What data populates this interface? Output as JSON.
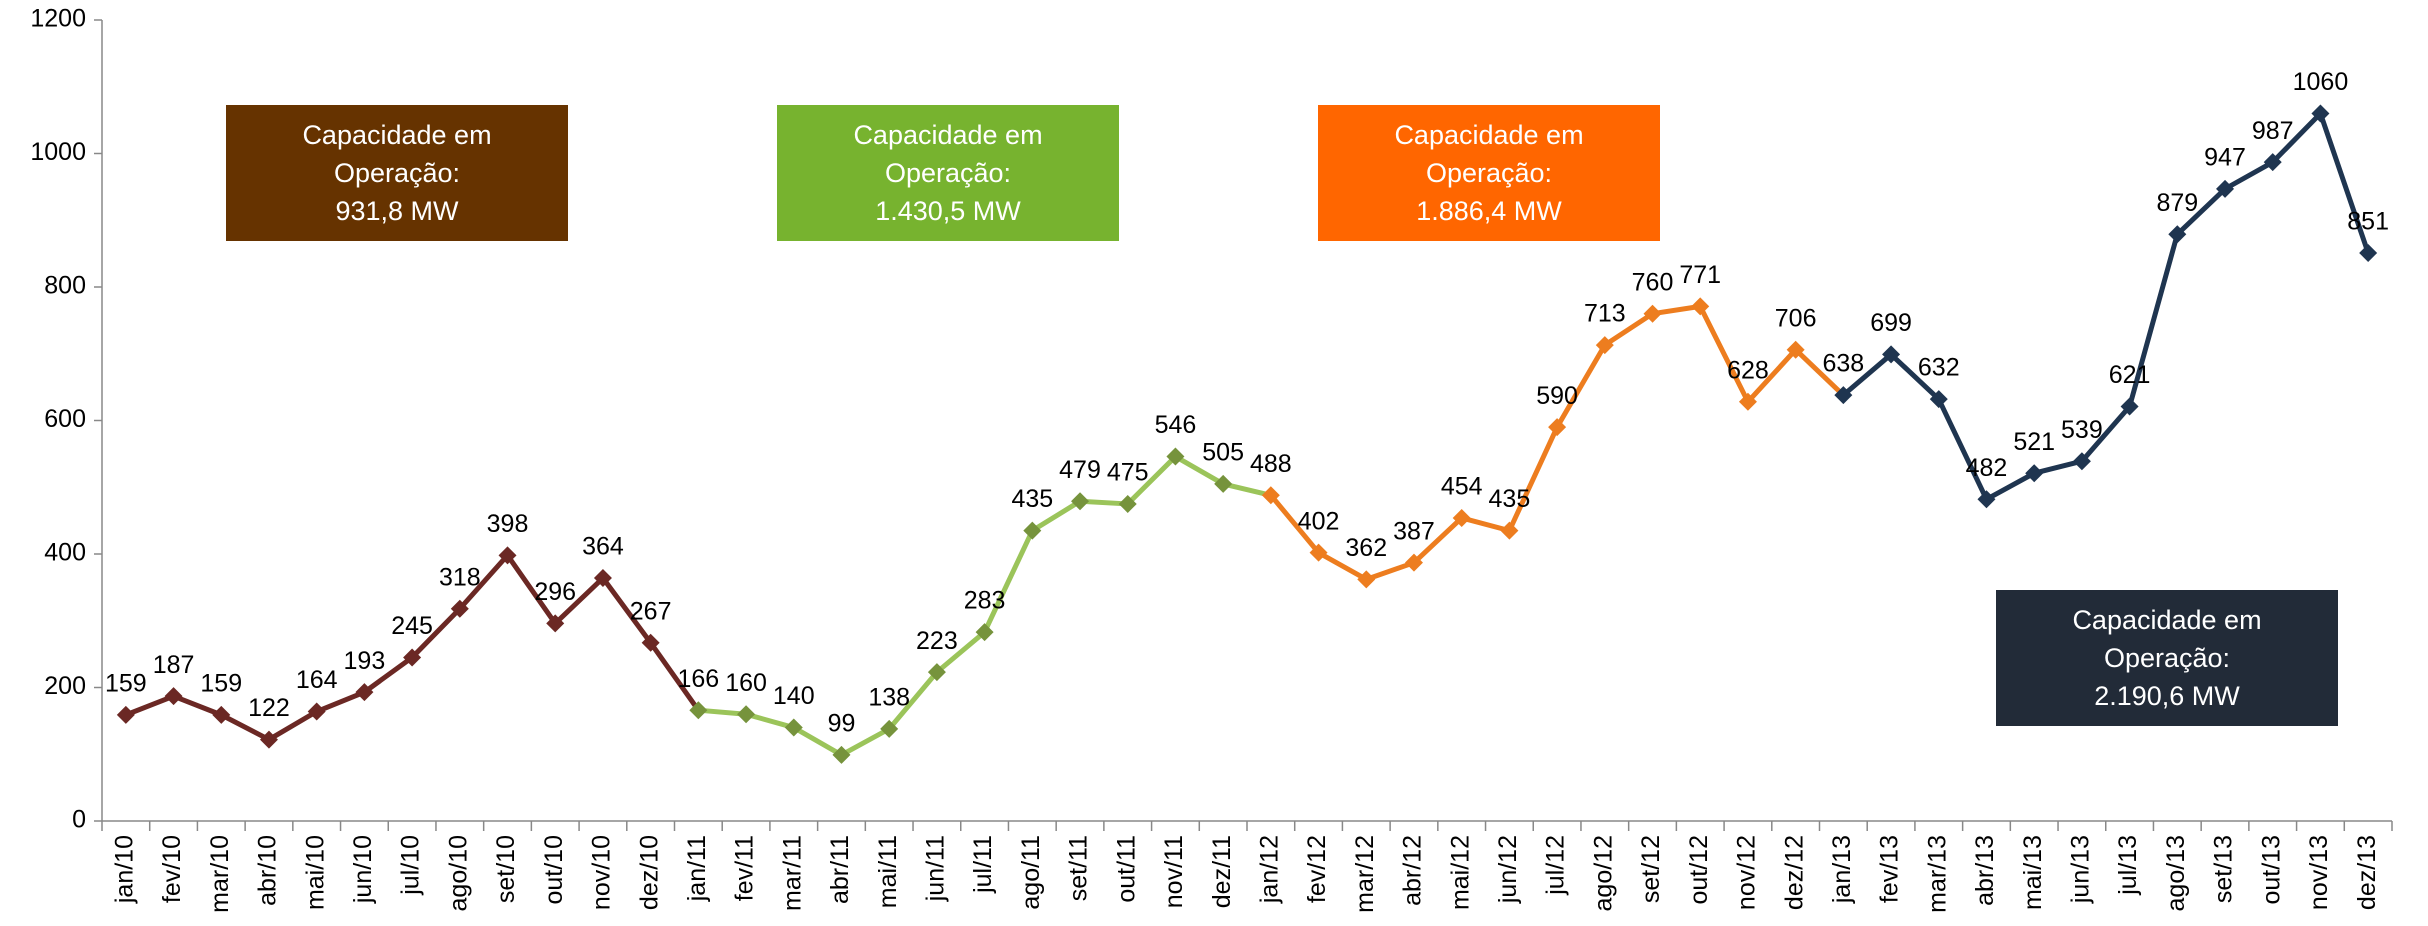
{
  "chart_data": {
    "type": "line",
    "categories": [
      "jan/10",
      "fev/10",
      "mar/10",
      "abr/10",
      "mai/10",
      "jun/10",
      "jul/10",
      "ago/10",
      "set/10",
      "out/10",
      "nov/10",
      "dez/10",
      "jan/11",
      "fev/11",
      "mar/11",
      "abr/11",
      "mai/11",
      "jun/11",
      "jul/11",
      "ago/11",
      "set/11",
      "out/11",
      "nov/11",
      "dez/11",
      "jan/12",
      "fev/12",
      "mar/12",
      "abr/12",
      "mai/12",
      "jun/12",
      "jul/12",
      "ago/12",
      "set/12",
      "out/12",
      "nov/12",
      "dez/12",
      "jan/13",
      "fev/13",
      "mar/13",
      "abr/13",
      "mai/13",
      "jun/13",
      "jul/13",
      "ago/13",
      "set/13",
      "out/13",
      "nov/13",
      "dez/13"
    ],
    "series": [
      {
        "color": "#6b2824",
        "marker_color": "#6b2824",
        "values": [
          159,
          187,
          159,
          122,
          164,
          193,
          245,
          318,
          398,
          296,
          364,
          267,
          null,
          null,
          null,
          null,
          null,
          null,
          null,
          null,
          null,
          null,
          null,
          null,
          null,
          null,
          null,
          null,
          null,
          null,
          null,
          null,
          null,
          null,
          null,
          null,
          null,
          null,
          null,
          null,
          null,
          null,
          null,
          null,
          null,
          null,
          null,
          null
        ]
      },
      {
        "color": "#9bc45a",
        "marker_color": "#76933c",
        "values": [
          null,
          null,
          null,
          null,
          null,
          null,
          null,
          null,
          null,
          null,
          null,
          null,
          166,
          160,
          140,
          99,
          138,
          223,
          283,
          435,
          479,
          475,
          546,
          505,
          null,
          null,
          null,
          null,
          null,
          null,
          null,
          null,
          null,
          null,
          null,
          null,
          null,
          null,
          null,
          null,
          null,
          null,
          null,
          null,
          null,
          null,
          null,
          null
        ]
      },
      {
        "color": "#ed7d1f",
        "marker_color": "#ed7d1f",
        "values": [
          null,
          null,
          null,
          null,
          null,
          null,
          null,
          null,
          null,
          null,
          null,
          null,
          null,
          null,
          null,
          null,
          null,
          null,
          null,
          null,
          null,
          null,
          null,
          null,
          488,
          402,
          362,
          387,
          454,
          435,
          590,
          713,
          760,
          771,
          628,
          706,
          null,
          null,
          null,
          null,
          null,
          null,
          null,
          null,
          null,
          null,
          null,
          null
        ]
      },
      {
        "color": "#1f3550",
        "marker_color": "#1f3550",
        "values": [
          null,
          null,
          null,
          null,
          null,
          null,
          null,
          null,
          null,
          null,
          null,
          null,
          null,
          null,
          null,
          null,
          null,
          null,
          null,
          null,
          null,
          null,
          null,
          null,
          null,
          null,
          null,
          null,
          null,
          null,
          null,
          null,
          null,
          null,
          null,
          null,
          638,
          699,
          632,
          482,
          521,
          539,
          621,
          879,
          947,
          987,
          1060,
          851
        ]
      }
    ],
    "ylim": [
      0,
      1200
    ],
    "yticks": [
      0,
      200,
      400,
      600,
      800,
      1000,
      1200
    ],
    "annotations": [
      {
        "lines": [
          "Capacidade em",
          "Operação:",
          "931,8 MW"
        ],
        "color": "#663300"
      },
      {
        "lines": [
          "Capacidade em",
          "Operação:",
          "1.430,5 MW"
        ],
        "color": "#77b32f"
      },
      {
        "lines": [
          "Capacidade em",
          "Operação:",
          "1.886,4 MW"
        ],
        "color": "#ff6600"
      },
      {
        "lines": [
          "Capacidade em",
          "Operação:",
          "2.190,6 MW"
        ],
        "color": "#222b38"
      }
    ]
  }
}
